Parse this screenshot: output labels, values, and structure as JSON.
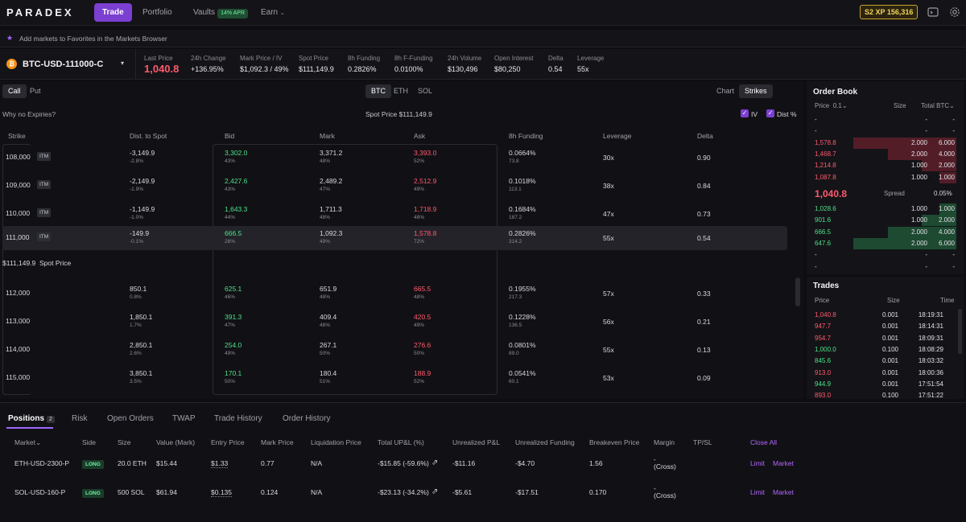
{
  "nav": {
    "logo": "PARADEX",
    "trade": "Trade",
    "portfolio": "Portfolio",
    "vaults": "Vaults",
    "vaults_badge": "14% APR",
    "earn": "Earn",
    "xp": "S2 XP 156,316"
  },
  "favbar": {
    "text": "Add markets to Favorites in the Markets Browser"
  },
  "market": {
    "coin_letter": "₿",
    "name": "BTC-USD-111000-C",
    "stats": [
      {
        "label": "Last Price",
        "value": "1,040.8"
      },
      {
        "label": "24h Change",
        "value": "+136.95%"
      },
      {
        "label": "Mark Price / IV",
        "value": "$1,092.3 / 49%"
      },
      {
        "label": "Spot Price",
        "value": "$111,149.9"
      },
      {
        "label": "8h Funding",
        "value": "0.2826%"
      },
      {
        "label": "8h F-Funding",
        "value": "0.0100%"
      },
      {
        "label": "24h Volume",
        "value": "$130,496"
      },
      {
        "label": "Open Interest",
        "value": "$80,250"
      },
      {
        "label": "Delta",
        "value": "0.54"
      },
      {
        "label": "Leverage",
        "value": "55x"
      }
    ]
  },
  "options": {
    "call": "Call",
    "put": "Put",
    "assets": [
      "BTC",
      "ETH",
      "SOL"
    ],
    "chart": "Chart",
    "strikes": "Strikes",
    "why": "Why no Expiries?",
    "spot_label": "Spot Price $111,149.9",
    "iv": "IV",
    "dist": "Dist %",
    "headers": [
      "Strike",
      "Dist. to Spot",
      "Bid",
      "Mark",
      "Ask",
      "8h Funding",
      "Leverage",
      "Delta"
    ],
    "itm_label": "ITM",
    "spot_row": "$111,149.9",
    "spot_row_label": "Spot Price",
    "rows": [
      {
        "strike": "108,000",
        "itm": true,
        "dist": "-3,149.9",
        "dist_pct": "-2.8%",
        "bid": "3,302.0",
        "bid_iv": "43%",
        "mark": "3,371.2",
        "mark_iv": "48%",
        "ask": "3,393.0",
        "ask_iv": "52%",
        "fund": "0.0664%",
        "fund_sub": "73.8",
        "lev": "30x",
        "delta": "0.90"
      },
      {
        "strike": "109,000",
        "itm": true,
        "dist": "-2,149.9",
        "dist_pct": "-1.9%",
        "bid": "2,427.6",
        "bid_iv": "43%",
        "mark": "2,489.2",
        "mark_iv": "47%",
        "ask": "2,512.9",
        "ask_iv": "49%",
        "fund": "0.1018%",
        "fund_sub": "113.1",
        "lev": "38x",
        "delta": "0.84"
      },
      {
        "strike": "110,000",
        "itm": true,
        "dist": "-1,149.9",
        "dist_pct": "-1.0%",
        "bid": "1,643.3",
        "bid_iv": "44%",
        "mark": "1,711.3",
        "mark_iv": "48%",
        "ask": "1,718.9",
        "ask_iv": "48%",
        "fund": "0.1684%",
        "fund_sub": "187.2",
        "lev": "47x",
        "delta": "0.73"
      },
      {
        "strike": "111,000",
        "itm": true,
        "dist": "-149.9",
        "dist_pct": "-0.1%",
        "bid": "666.5",
        "bid_iv": "28%",
        "mark": "1,092.3",
        "mark_iv": "49%",
        "ask": "1,578.8",
        "ask_iv": "72%",
        "fund": "0.2826%",
        "fund_sub": "314.2",
        "lev": "55x",
        "delta": "0.54"
      },
      {
        "strike": "112,000",
        "itm": false,
        "dist": "850.1",
        "dist_pct": "0.8%",
        "bid": "625.1",
        "bid_iv": "46%",
        "mark": "651.9",
        "mark_iv": "48%",
        "ask": "665.5",
        "ask_iv": "48%",
        "fund": "0.1955%",
        "fund_sub": "217.3",
        "lev": "57x",
        "delta": "0.33"
      },
      {
        "strike": "113,000",
        "itm": false,
        "dist": "1,850.1",
        "dist_pct": "1.7%",
        "bid": "391.3",
        "bid_iv": "47%",
        "mark": "409.4",
        "mark_iv": "48%",
        "ask": "420.5",
        "ask_iv": "49%",
        "fund": "0.1228%",
        "fund_sub": "136.5",
        "lev": "56x",
        "delta": "0.21"
      },
      {
        "strike": "114,000",
        "itm": false,
        "dist": "2,850.1",
        "dist_pct": "2.6%",
        "bid": "254.0",
        "bid_iv": "49%",
        "mark": "267.1",
        "mark_iv": "50%",
        "ask": "276.6",
        "ask_iv": "50%",
        "fund": "0.0801%",
        "fund_sub": "89.0",
        "lev": "55x",
        "delta": "0.13"
      },
      {
        "strike": "115,000",
        "itm": false,
        "dist": "3,850.1",
        "dist_pct": "3.5%",
        "bid": "170.1",
        "bid_iv": "50%",
        "mark": "180.4",
        "mark_iv": "51%",
        "ask": "188.9",
        "ask_iv": "52%",
        "fund": "0.0541%",
        "fund_sub": "60.1",
        "lev": "53x",
        "delta": "0.09"
      }
    ]
  },
  "orderbook": {
    "title": "Order Book",
    "price_label": "Price",
    "tick": "0.1",
    "size_label": "Size",
    "total_label": "Total BTC",
    "asks": [
      {
        "price": "-",
        "size": "-",
        "total": "-",
        "depth": 0
      },
      {
        "price": "-",
        "size": "-",
        "total": "-",
        "depth": 0
      },
      {
        "price": "1,578.8",
        "size": "2.000",
        "total": "6.000",
        "depth": 1.0
      },
      {
        "price": "1,468.7",
        "size": "2.000",
        "total": "4.000",
        "depth": 0.667
      },
      {
        "price": "1,214.8",
        "size": "1.000",
        "total": "2.000",
        "depth": 0.333
      },
      {
        "price": "1,087.8",
        "size": "1.000",
        "total": "1.000",
        "depth": 0.167
      }
    ],
    "mid": "1,040.8",
    "spread_label": "Spread",
    "spread": "0.05%",
    "bids": [
      {
        "price": "1,028.6",
        "size": "1.000",
        "total": "1.000",
        "depth": 0.167
      },
      {
        "price": "901.6",
        "size": "1.000",
        "total": "2.000",
        "depth": 0.333
      },
      {
        "price": "666.5",
        "size": "2.000",
        "total": "4.000",
        "depth": 0.667
      },
      {
        "price": "647.6",
        "size": "2.000",
        "total": "6.000",
        "depth": 1.0
      },
      {
        "price": "-",
        "size": "-",
        "total": "-",
        "depth": 0
      },
      {
        "price": "-",
        "size": "-",
        "total": "-",
        "depth": 0
      }
    ]
  },
  "trades": {
    "title": "Trades",
    "price_label": "Price",
    "size_label": "Size",
    "time_label": "Time",
    "rows": [
      {
        "price": "1,040.8",
        "side": "sell",
        "size": "0.001",
        "time": "18:19:31"
      },
      {
        "price": "947.7",
        "side": "sell",
        "size": "0.001",
        "time": "18:14:31"
      },
      {
        "price": "954.7",
        "side": "sell",
        "size": "0.001",
        "time": "18:09:31"
      },
      {
        "price": "1,000.0",
        "side": "buy",
        "size": "0.100",
        "time": "18:08:29"
      },
      {
        "price": "845.6",
        "side": "buy",
        "size": "0.001",
        "time": "18:03:32"
      },
      {
        "price": "913.0",
        "side": "sell",
        "size": "0.001",
        "time": "18:00:36"
      },
      {
        "price": "944.9",
        "side": "buy",
        "size": "0.001",
        "time": "17:51:54"
      },
      {
        "price": "893.0",
        "side": "sell",
        "size": "0.100",
        "time": "17:51:22"
      }
    ]
  },
  "positions": {
    "tabs": [
      "Positions",
      "Risk",
      "Open Orders",
      "TWAP",
      "Trade History",
      "Order History"
    ],
    "count": "2",
    "headers": [
      "Market",
      "Side",
      "Size",
      "Value (Mark)",
      "Entry Price",
      "Mark Price",
      "Liquidation Price",
      "Total UP&L (%)",
      "Unrealized P&L",
      "Unrealized Funding",
      "Breakeven Price",
      "Margin",
      "TP/SL",
      "Close All"
    ],
    "rows": [
      {
        "market": "ETH-USD-2300-P",
        "side": "LONG",
        "size": "20.0 ETH",
        "value": "$15.44",
        "entry": "$1.33",
        "mark": "0.77",
        "liq": "N/A",
        "total_upl": "-$15.85  (-59.6%)",
        "upl": "-$11.16",
        "ufund": "-$4.70",
        "breakeven": "1.56",
        "margin_top": "-",
        "margin": "(Cross)",
        "limit": "Limit",
        "market_btn": "Market"
      },
      {
        "market": "SOL-USD-160-P",
        "side": "LONG",
        "size": "500 SOL",
        "value": "$61.94",
        "entry": "$0.135",
        "mark": "0.124",
        "liq": "N/A",
        "total_upl": "-$23.13  (-34.2%)",
        "upl": "-$5.61",
        "ufund": "-$17.51",
        "breakeven": "0.170",
        "margin_top": "-",
        "margin": "(Cross)",
        "limit": "Limit",
        "market_btn": "Market"
      }
    ]
  }
}
